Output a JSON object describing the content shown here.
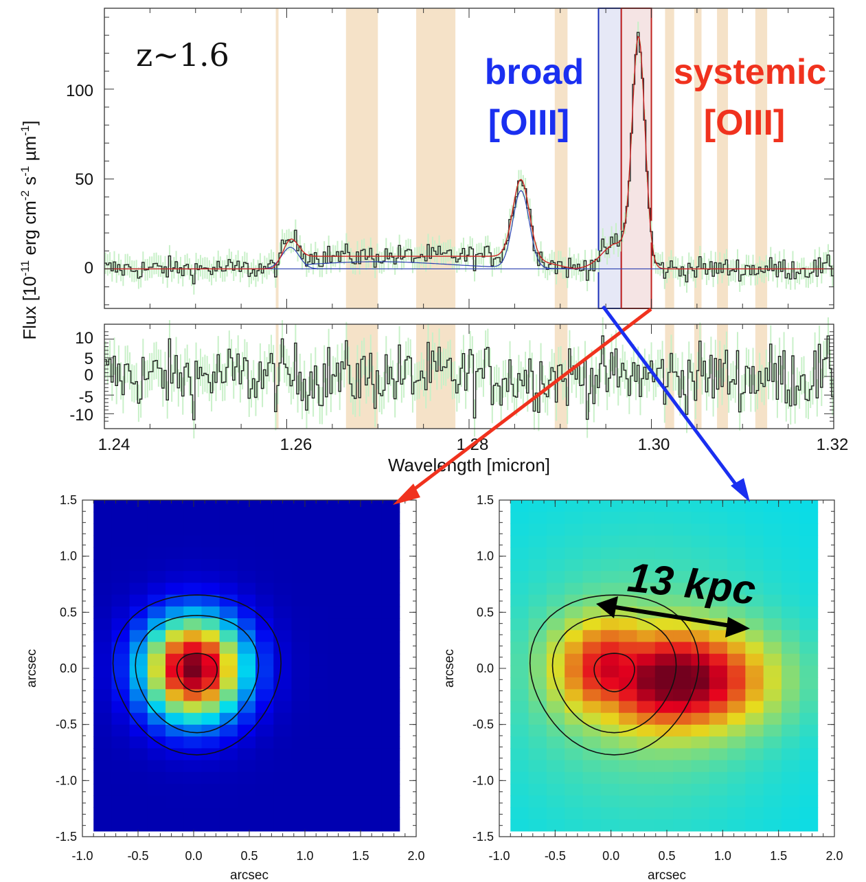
{
  "chart_data": [
    {
      "type": "line",
      "panel": "spectrum",
      "redshift_label": "z~1.6",
      "ylabel": "Flux [10",
      "ylabel_exp1": "-11",
      "ylabel_mid": " erg cm",
      "ylabel_exp2": "-2",
      "ylabel_mid2": " s",
      "ylabel_exp3": "-1",
      "ylabel_mid3": " µm",
      "ylabel_exp4": "-1",
      "ylabel_end": "]",
      "xlabel": "Wavelength [micron]",
      "xlim": [
        1.24,
        1.32
      ],
      "ylim": [
        -22,
        145
      ],
      "xticks": [
        "1.24",
        "1.26",
        "1.28",
        "1.30",
        "1.32"
      ],
      "yticks": [
        "0",
        "50",
        "100"
      ],
      "annotations": {
        "broad_line1": "broad",
        "broad_line2": "[OIII]",
        "systemic_line1": "systemic",
        "systemic_line2": "[OIII]"
      },
      "sky_bands": [
        [
          1.2588,
          1.2591
        ],
        [
          1.2665,
          1.27
        ],
        [
          1.2742,
          1.2785
        ],
        [
          1.2894,
          1.2908
        ],
        [
          1.3015,
          1.3025
        ],
        [
          1.3047,
          1.3055
        ],
        [
          1.3072,
          1.3084
        ],
        [
          1.3114,
          1.3127
        ]
      ],
      "broad_window": [
        1.2942,
        1.2967
      ],
      "systemic_window": [
        1.2967,
        1.3
      ],
      "lines": [
        {
          "center": 1.2604,
          "sigma": 0.0008,
          "amp": 12
        },
        {
          "center": 1.2857,
          "sigma": 0.0009,
          "amp": 43
        },
        {
          "center": 1.2986,
          "sigma": 0.0007,
          "amp": 125
        },
        {
          "center": 1.2962,
          "sigma": 0.0016,
          "amp": 14
        },
        {
          "center": 1.26,
          "sigma": 0.002,
          "amp": 10
        }
      ],
      "colors": {
        "data": "#222222",
        "model": "#cc2222",
        "components": "#2a3fb0",
        "sky": "#f5e2c8",
        "errors": "#c8f0c8",
        "broad_fill": "#e6e8f6",
        "broad_edge": "#1a2fb8",
        "systemic_fill": "#f5e4e4",
        "systemic_edge": "#c0201e",
        "broad_text": "#1a2ff0",
        "systemic_text": "#f0321e"
      }
    },
    {
      "type": "line",
      "panel": "residuals",
      "ylim": [
        -14,
        14
      ],
      "yticks": [
        "10",
        "5",
        "0",
        "-5",
        "-10"
      ]
    },
    {
      "type": "heatmap",
      "panel": "systemic-map",
      "xlabel": "arcsec",
      "ylabel": "arcsec",
      "xlim": [
        -1.0,
        2.0
      ],
      "ylim": [
        -1.5,
        1.5
      ],
      "xticks": [
        "-1.0",
        "-0.5",
        "0.0",
        "0.5",
        "1.0",
        "1.5",
        "2.0"
      ],
      "yticks": [
        "1.5",
        "1.0",
        "0.5",
        "0.0",
        "-0.5",
        "-1.0",
        "-1.5"
      ],
      "peak": [
        0.0,
        0.0
      ],
      "contour_radii": [
        0.18,
        0.55,
        0.75
      ],
      "contour_center": [
        0.03,
        -0.03
      ]
    },
    {
      "type": "heatmap",
      "panel": "broad-map",
      "xlabel": "arcsec",
      "ylabel": "arcsec",
      "xlim": [
        -1.0,
        2.0
      ],
      "ylim": [
        -1.5,
        1.5
      ],
      "xticks": [
        "-1.0",
        "-0.5",
        "0.0",
        "0.5",
        "1.0",
        "1.5",
        "2.0"
      ],
      "yticks": [
        "1.5",
        "1.0",
        "0.5",
        "0.0",
        "-0.5",
        "-1.0",
        "-1.5"
      ],
      "peak": [
        0.6,
        -0.1
      ],
      "contour_radii": [
        0.18,
        0.55,
        0.75
      ],
      "contour_center": [
        0.03,
        -0.03
      ],
      "scale_label": "13 kpc"
    }
  ]
}
